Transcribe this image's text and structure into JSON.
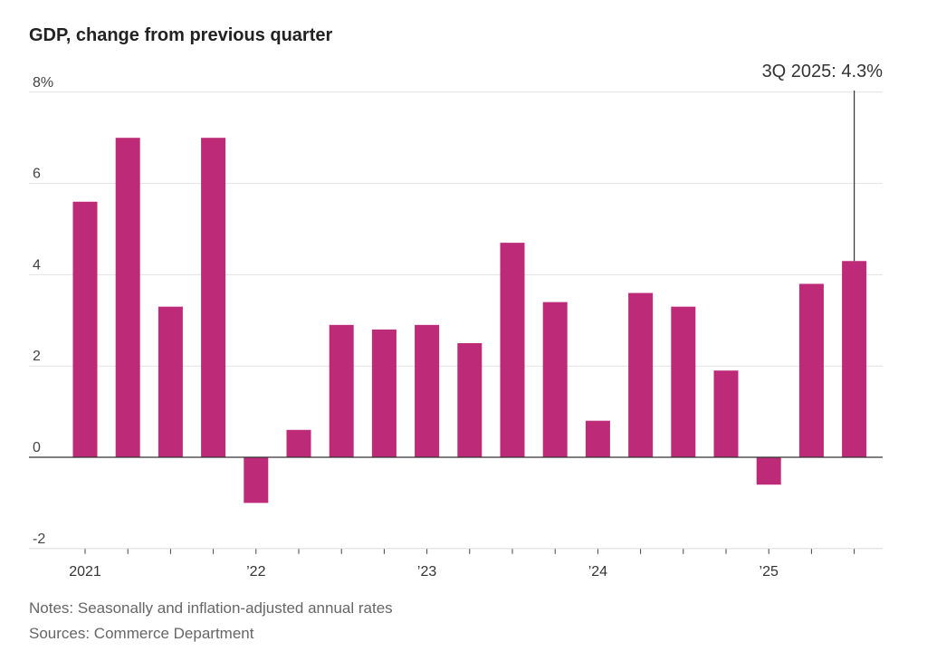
{
  "chart_data": {
    "type": "bar",
    "title": "GDP, change from previous quarter",
    "categories": [
      "1Q 2021",
      "2Q 2021",
      "3Q 2021",
      "4Q 2021",
      "1Q 2022",
      "2Q 2022",
      "3Q 2022",
      "4Q 2022",
      "1Q 2023",
      "2Q 2023",
      "3Q 2023",
      "4Q 2023",
      "1Q 2024",
      "2Q 2024",
      "3Q 2024",
      "4Q 2024",
      "1Q 2025",
      "2Q 2025",
      "3Q 2025"
    ],
    "values": [
      5.6,
      7.0,
      3.3,
      7.0,
      -1.0,
      0.6,
      2.9,
      2.8,
      2.9,
      2.5,
      4.7,
      3.4,
      0.8,
      3.6,
      3.3,
      1.9,
      -0.6,
      3.8,
      4.3
    ],
    "ylim": [
      -2,
      8
    ],
    "yticks": [
      {
        "v": 8,
        "label": "8%"
      },
      {
        "v": 6,
        "label": "6"
      },
      {
        "v": 4,
        "label": "4"
      },
      {
        "v": 2,
        "label": "2"
      },
      {
        "v": 0,
        "label": "0"
      },
      {
        "v": -2,
        "label": "-2"
      }
    ],
    "xtick_labels": [
      {
        "i": 0,
        "label": "2021"
      },
      {
        "i": 4,
        "label": "’22"
      },
      {
        "i": 8,
        "label": "’23"
      },
      {
        "i": 12,
        "label": "’24"
      },
      {
        "i": 16,
        "label": "’25"
      }
    ],
    "annotation": {
      "i": 18,
      "label": "3Q 2025: 4.3%"
    },
    "grid": true,
    "color": "#bc2a78"
  },
  "notes": "Notes: Seasonally and inflation-adjusted annual rates",
  "sources": "Sources: Commerce Department"
}
